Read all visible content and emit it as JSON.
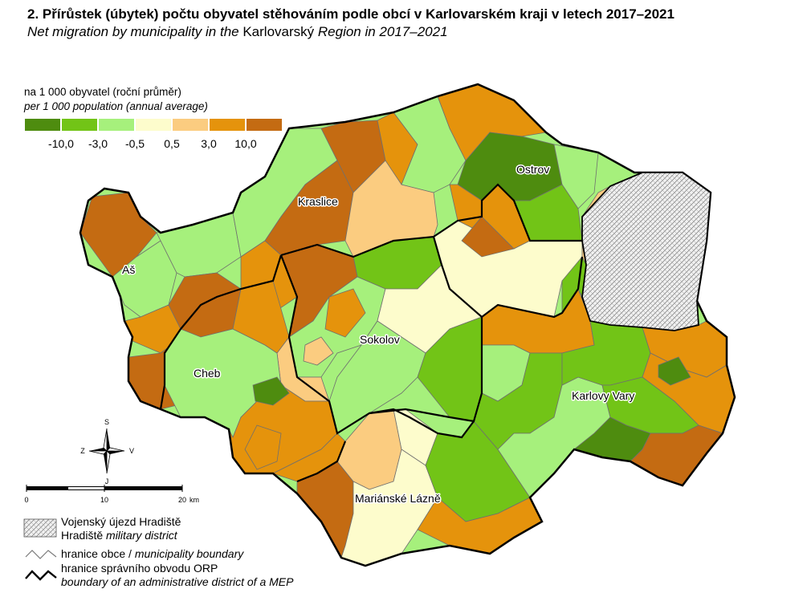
{
  "title": "2. Přírůstek (úbytek) počtu obyvatel stěhováním podle obcí v Karlovarském kraji v letech 2017–2021",
  "subtitle_pre": "Net migration by municipality in the ",
  "subtitle_region": "Karlovarský",
  "subtitle_post": " Region in 2017–2021",
  "legend": {
    "unit_cs": "na 1 000 obyvatel (roční průměr)",
    "unit_en": "per 1 000 population (annual average)",
    "colors": [
      "#4e8c0f",
      "#72c417",
      "#a6f07c",
      "#fdfccc",
      "#fbcc80",
      "#e5930c",
      "#c46b12"
    ],
    "breaks": [
      "-10,0",
      "-3,0",
      "-0,5",
      "0,5",
      "3,0",
      "10,0"
    ]
  },
  "cities": [
    "Ostrov",
    "Kraslice",
    "Aš",
    "Sokolov",
    "Cheb",
    "Karlovy Vary",
    "Mariánské Lázně"
  ],
  "compass": {
    "north": "S",
    "south": "J",
    "west": "Z",
    "east": "V"
  },
  "scale": {
    "labels": [
      "0",
      "10",
      "20"
    ],
    "unit": "km"
  },
  "legend_items": {
    "military_cs": "Vojenský újezd Hradiště",
    "military_en_pre": "Hradiště ",
    "military_en_italic": "military district",
    "muni_cs": "hranice obce / ",
    "muni_en": "municipality boundary",
    "orp_cs": "hranice správního obvodu ORP",
    "orp_en": "boundary of an administrative district of a MEP"
  }
}
